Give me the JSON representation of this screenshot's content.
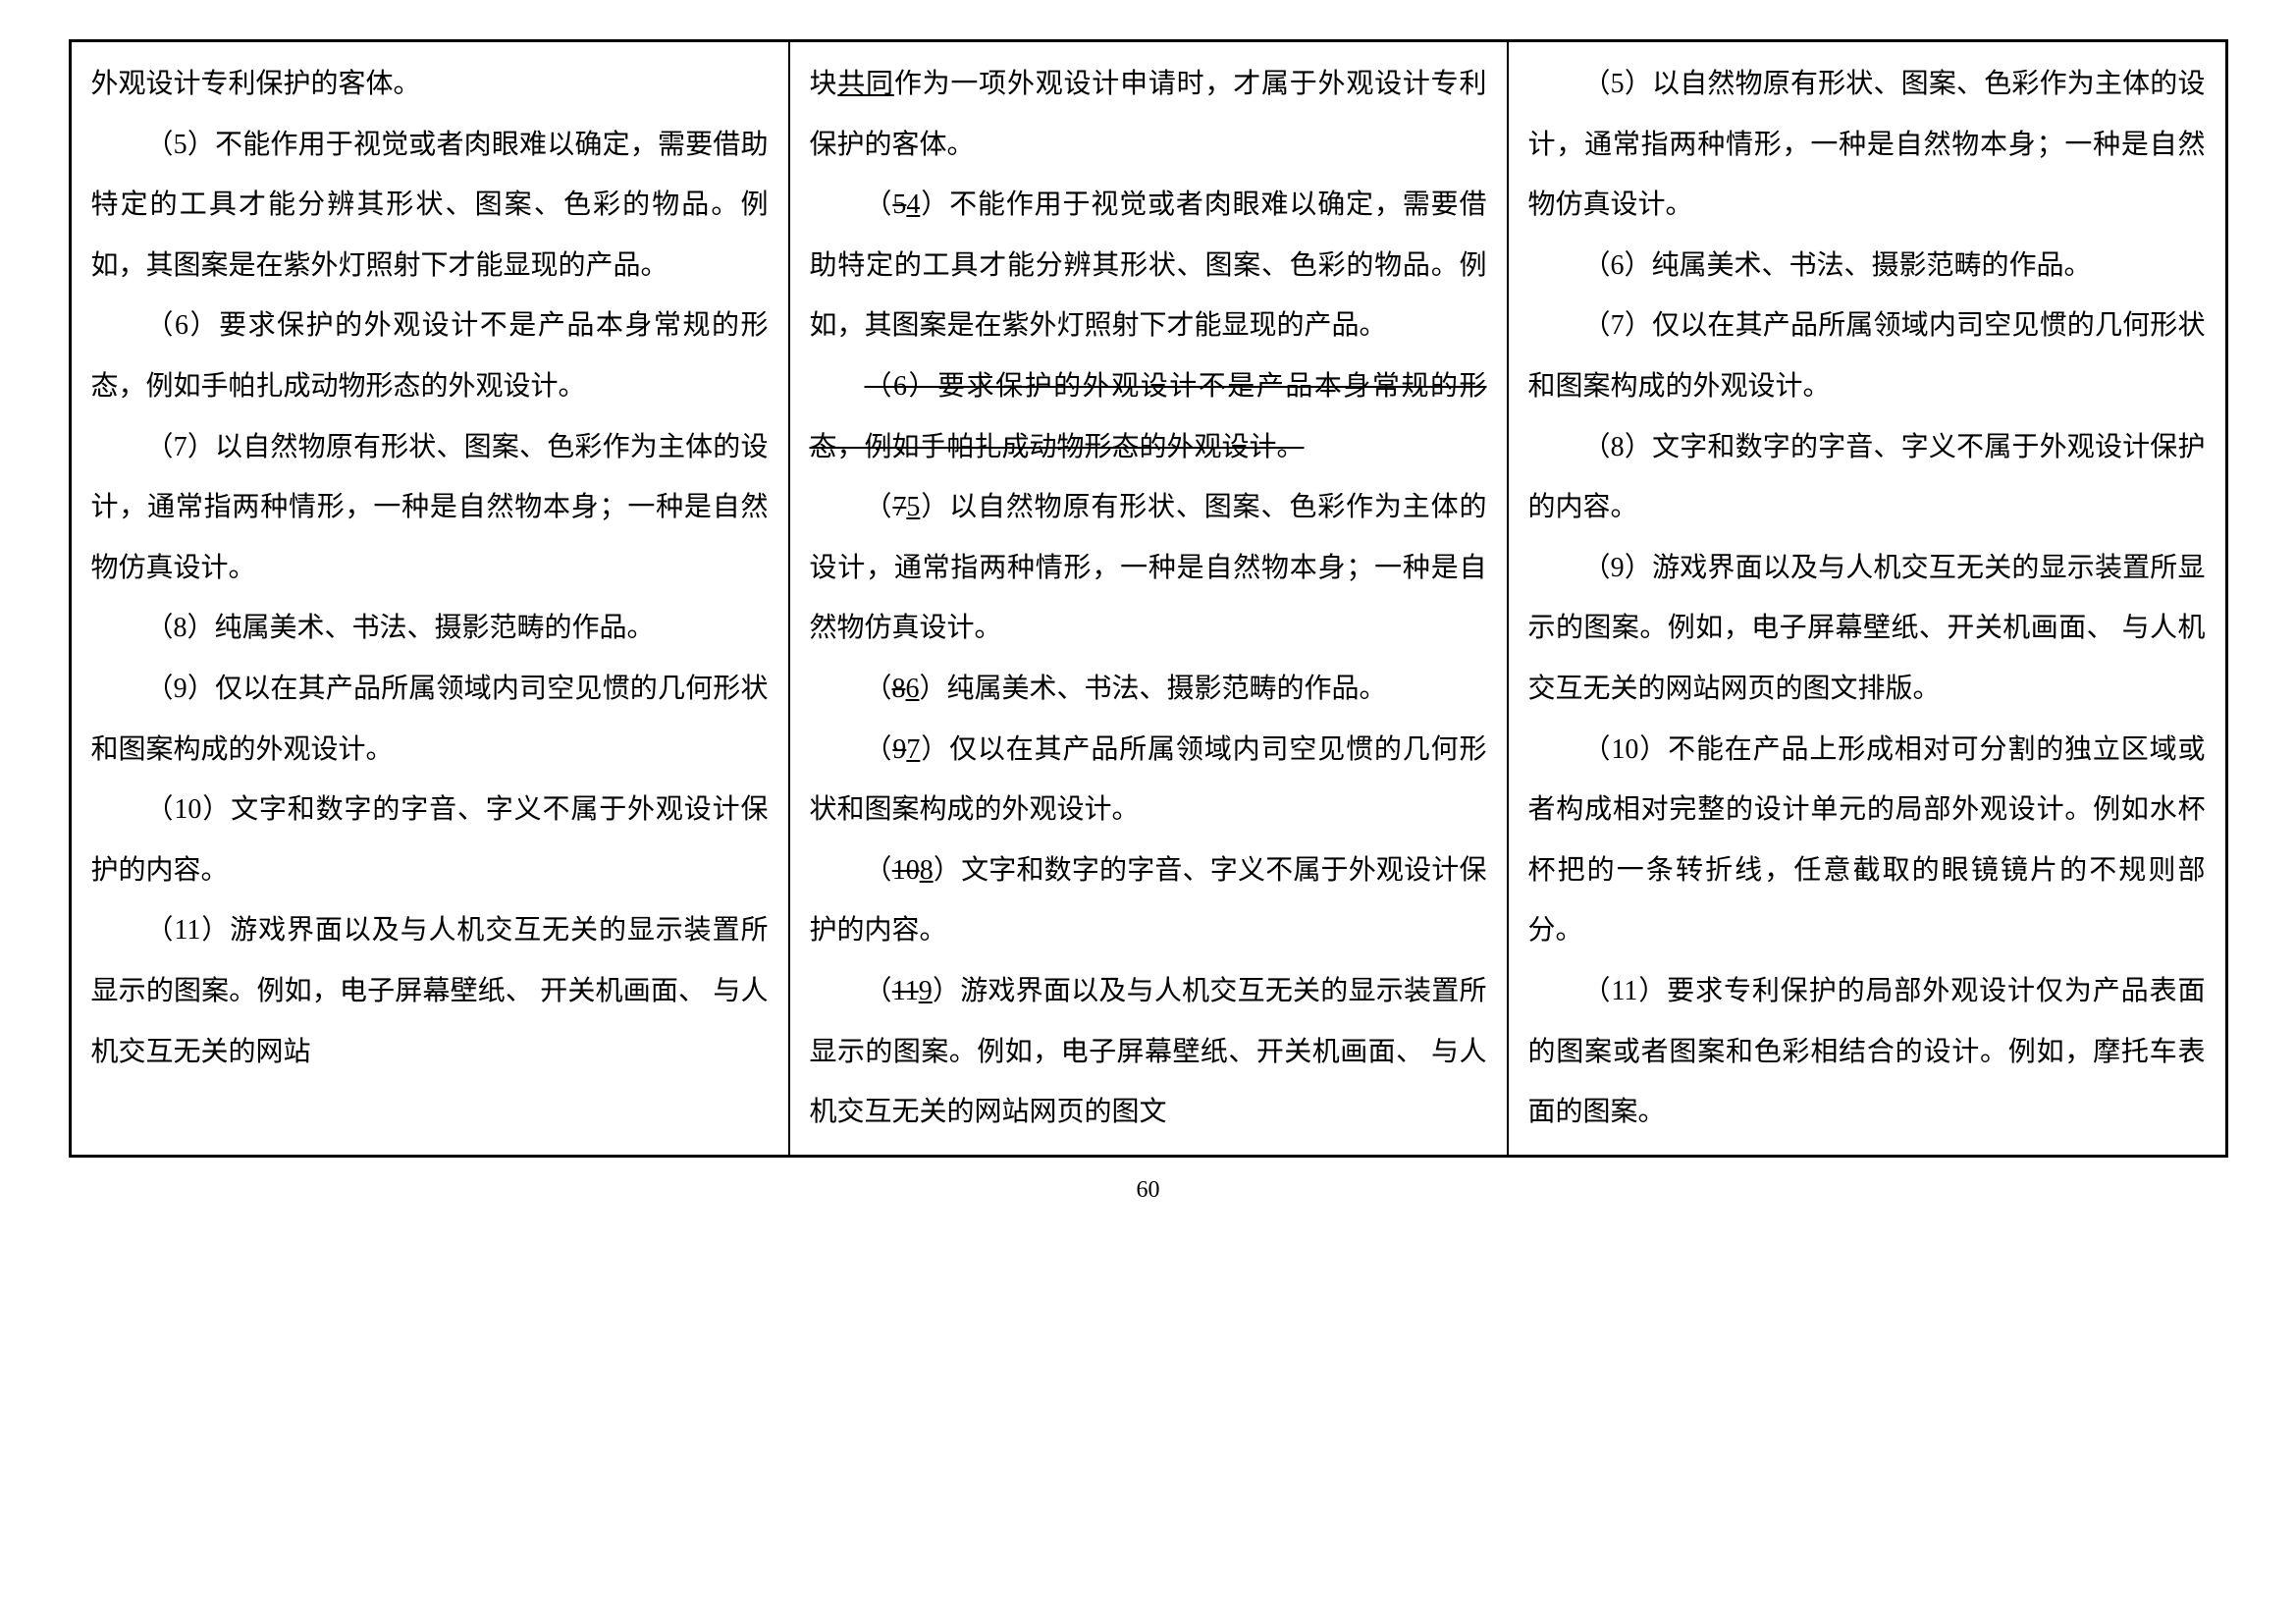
{
  "pageNumber": "60",
  "columns": {
    "left": {
      "paragraphs": [
        {
          "type": "noindent",
          "segments": [
            {
              "text": "外观设计专利保护的客体。"
            }
          ]
        },
        {
          "type": "indent",
          "segments": [
            {
              "text": "（5）不能作用于视觉或者肉眼难以确定，需要借助特定的工具才能分辨其形状、图案、色彩的物品。例如，其图案是在紫外灯照射下才能显现的产品。"
            }
          ]
        },
        {
          "type": "indent",
          "segments": [
            {
              "text": "（6）要求保护的外观设计不是产品本身常规的形态，例如手帕扎成动物形态的外观设计。"
            }
          ]
        },
        {
          "type": "indent",
          "segments": [
            {
              "text": "（7）以自然物原有形状、图案、色彩作为主体的设计，通常指两种情形，一种是自然物本身；一种是自然物仿真设计。"
            }
          ]
        },
        {
          "type": "indent",
          "segments": [
            {
              "text": "（8）纯属美术、书法、摄影范畴的作品。"
            }
          ]
        },
        {
          "type": "indent",
          "segments": [
            {
              "text": "（9）仅以在其产品所属领域内司空见惯的几何形状和图案构成的外观设计。"
            }
          ]
        },
        {
          "type": "indent",
          "segments": [
            {
              "text": "（10）文字和数字的字音、字义不属于外观设计保护的内容。"
            }
          ]
        },
        {
          "type": "indent",
          "segments": [
            {
              "text": "（11）游戏界面以及与人机交互无关的显示装置所显示的图案。例如，电子屏幕壁纸、 开关机画面、 与人机交互无关的网站"
            }
          ]
        }
      ]
    },
    "middle": {
      "paragraphs": [
        {
          "type": "noindent",
          "segments": [
            {
              "text": "块"
            },
            {
              "text": "共同",
              "style": "underline"
            },
            {
              "text": "作为一项外观设计申请时，才属于外观设计专利保护的客体。"
            }
          ]
        },
        {
          "type": "indent",
          "segments": [
            {
              "text": "（"
            },
            {
              "text": "5",
              "style": "strike"
            },
            {
              "text": "4",
              "style": "underline"
            },
            {
              "text": "）不能作用于视觉或者肉眼难以确定，需要借助特定的工具才能分辨其形状、图案、色彩的物品。例如，其图案是在紫外灯照射下才能显现的产品。"
            }
          ]
        },
        {
          "type": "indent",
          "segments": [
            {
              "text": "（6）要求保护的外观设计不是产品本身常规的形态，例如手帕扎成动物形态的外观设计。",
              "style": "strike"
            }
          ]
        },
        {
          "type": "indent",
          "segments": [
            {
              "text": "（"
            },
            {
              "text": "7",
              "style": "strike"
            },
            {
              "text": "5",
              "style": "underline"
            },
            {
              "text": "）以自然物原有形状、图案、色彩作为主体的设计，通常指两种情形，一种是自然物本身；一种是自然物仿真设计。"
            }
          ]
        },
        {
          "type": "indent",
          "segments": [
            {
              "text": "（"
            },
            {
              "text": "8",
              "style": "strike"
            },
            {
              "text": "6",
              "style": "underline"
            },
            {
              "text": "）纯属美术、书法、摄影范畴的作品。"
            }
          ]
        },
        {
          "type": "indent",
          "segments": [
            {
              "text": "（"
            },
            {
              "text": "9",
              "style": "strike"
            },
            {
              "text": "7",
              "style": "underline"
            },
            {
              "text": "）仅以在其产品所属领域内司空见惯的几何形状和图案构成的外观设计。"
            }
          ]
        },
        {
          "type": "indent",
          "segments": [
            {
              "text": "（"
            },
            {
              "text": "10",
              "style": "strike"
            },
            {
              "text": "8",
              "style": "underline"
            },
            {
              "text": "）文字和数字的字音、字义不属于外观设计保护的内容。"
            }
          ]
        },
        {
          "type": "indent",
          "segments": [
            {
              "text": "（"
            },
            {
              "text": "11",
              "style": "strike"
            },
            {
              "text": "9",
              "style": "underline"
            },
            {
              "text": "）游戏界面以及与人机交互无关的显示装置所显示的图案。例如，电子屏幕壁纸、开关机画面、 与人机交互无关的网站网页的图文"
            }
          ]
        }
      ]
    },
    "right": {
      "paragraphs": [
        {
          "type": "indent",
          "segments": [
            {
              "text": "（5）以自然物原有形状、图案、色彩作为主体的设计，通常指两种情形，一种是自然物本身；一种是自然物仿真设计。"
            }
          ]
        },
        {
          "type": "indent",
          "segments": [
            {
              "text": "（6）纯属美术、书法、摄影范畴的作品。"
            }
          ]
        },
        {
          "type": "indent",
          "segments": [
            {
              "text": "（7）仅以在其产品所属领域内司空见惯的几何形状和图案构成的外观设计。"
            }
          ]
        },
        {
          "type": "indent",
          "segments": [
            {
              "text": "（8）文字和数字的字音、字义不属于外观设计保护的内容。"
            }
          ]
        },
        {
          "type": "indent",
          "segments": [
            {
              "text": "（9）游戏界面以及与人机交互无关的显示装置所显示的图案。例如，电子屏幕壁纸、开关机画面、 与人机交互无关的网站网页的图文排版。"
            }
          ]
        },
        {
          "type": "indent",
          "segments": [
            {
              "text": "（10）不能在产品上形成相对可分割的独立区域或者构成相对完整的设计单元的局部外观设计。例如水杯杯把的一条转折线，任意截取的眼镜镜片的不规则部分。"
            }
          ]
        },
        {
          "type": "indent",
          "segments": [
            {
              "text": "（11）要求专利保护的局部外观设计仅为产品表面的图案或者图案和色彩相结合的设计。例如，摩托车表面的图案。"
            }
          ]
        }
      ]
    }
  }
}
